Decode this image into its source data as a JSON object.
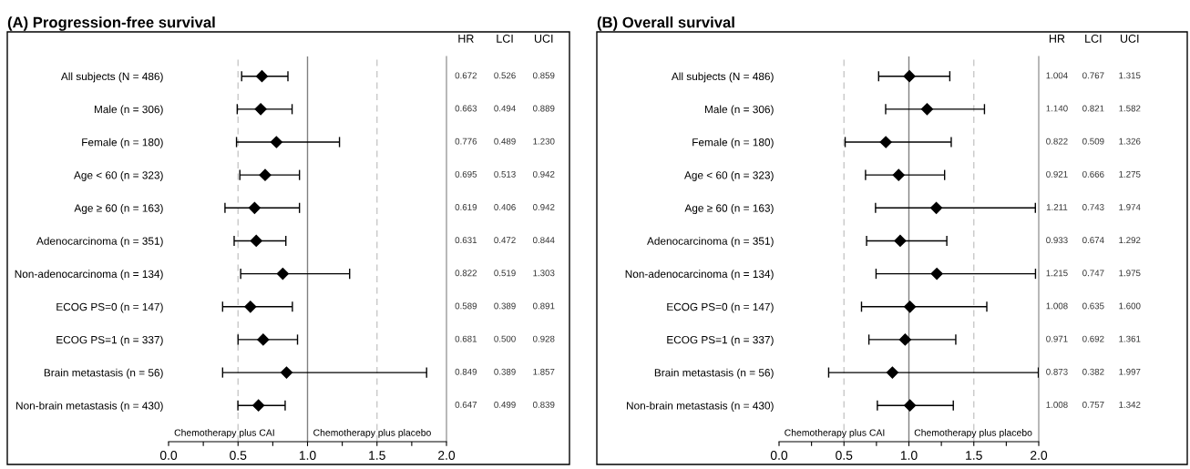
{
  "chart_data": [
    {
      "type": "scatter",
      "orientation": "horizontal",
      "title": "(A) Progression-free survival",
      "categories": [
        "All subjects (N = 486)",
        "Male (n = 306)",
        "Female (n = 180)",
        "Age < 60 (n = 323)",
        "Age ≥ 60 (n = 163)",
        "Adenocarcinoma (n = 351)",
        "Non-adenocarcinoma (n = 134)",
        "ECOG PS=0 (n = 147)",
        "ECOG PS=1 (n = 337)",
        "Brain metastasis (n = 56)",
        "Non-brain metastasis (n = 430)"
      ],
      "values": [
        0.672,
        0.663,
        0.776,
        0.695,
        0.619,
        0.631,
        0.822,
        0.589,
        0.681,
        0.849,
        0.647
      ],
      "value_labels": [
        "0.672",
        "0.663",
        "0.776",
        "0.695",
        "0.619",
        "0.631",
        "0.822",
        "0.589",
        "0.681",
        "0.849",
        "0.647"
      ],
      "errors": [
        [
          0.526,
          0.859
        ],
        [
          0.494,
          0.889
        ],
        [
          0.489,
          1.23
        ],
        [
          0.513,
          0.942
        ],
        [
          0.406,
          0.942
        ],
        [
          0.472,
          0.844
        ],
        [
          0.519,
          1.303
        ],
        [
          0.389,
          0.891
        ],
        [
          0.5,
          0.928
        ],
        [
          0.389,
          1.857
        ],
        [
          0.499,
          0.839
        ]
      ],
      "color": "#000000",
      "marker": "diamond",
      "grid": false,
      "xlim": [
        0,
        2
      ],
      "xticks": [
        {
          "value": 0,
          "label": "0.0"
        },
        {
          "value": 0.25,
          "label": null
        },
        {
          "value": 0.5,
          "label": "0.5"
        },
        {
          "value": 0.75,
          "label": null
        },
        {
          "value": 1,
          "label": "1.0"
        },
        {
          "value": 1.25,
          "label": null
        },
        {
          "value": 1.5,
          "label": "1.5"
        },
        {
          "value": 1.75,
          "label": null
        },
        {
          "value": 2,
          "label": "2.0"
        }
      ],
      "ref_lines": [
        {
          "axis": "x",
          "value": 0.5,
          "label": null,
          "color": "#c8c8c8",
          "line_style": "dashed"
        },
        {
          "axis": "x",
          "value": 1,
          "label": null,
          "color": "#808080",
          "line_style": "solid"
        },
        {
          "axis": "x",
          "value": 1.5,
          "label": null,
          "color": "#c8c8c8",
          "line_style": "dashed"
        }
      ],
      "annotations": [
        "HR",
        "LCI",
        "UCI",
        "Chemotherapy plus CAI",
        "Chemotherapy plus placebo",
        "0.526",
        "0.859",
        "0.494",
        "0.889",
        "0.489",
        "1.230",
        "0.513",
        "0.942",
        "0.406",
        "0.942",
        "0.472",
        "0.844",
        "0.519",
        "1.303",
        "0.389",
        "0.891",
        "0.500",
        "0.928",
        "0.389",
        "1.857",
        "0.499",
        "0.839"
      ]
    },
    {
      "type": "scatter",
      "orientation": "horizontal",
      "title": "(B) Overall survival",
      "categories": [
        "All subjects (N = 486)",
        "Male (n = 306)",
        "Female (n = 180)",
        "Age < 60 (n = 323)",
        "Age ≥ 60 (n = 163)",
        "Adenocarcinoma (n = 351)",
        "Non-adenocarcinoma (n = 134)",
        "ECOG PS=0 (n = 147)",
        "ECOG PS=1 (n = 337)",
        "Brain metastasis (n = 56)",
        "Non-brain metastasis (n = 430)"
      ],
      "values": [
        1.004,
        1.14,
        0.822,
        0.921,
        1.211,
        0.933,
        1.215,
        1.008,
        0.971,
        0.873,
        1.008
      ],
      "value_labels": [
        "1.004",
        "1.140",
        "0.822",
        "0.921",
        "1.211",
        "0.933",
        "1.215",
        "1.008",
        "0.971",
        "0.873",
        "1.008"
      ],
      "errors": [
        [
          0.767,
          1.315
        ],
        [
          0.821,
          1.582
        ],
        [
          0.509,
          1.326
        ],
        [
          0.666,
          1.275
        ],
        [
          0.743,
          1.974
        ],
        [
          0.674,
          1.292
        ],
        [
          0.747,
          1.975
        ],
        [
          0.635,
          1.6
        ],
        [
          0.692,
          1.361
        ],
        [
          0.382,
          1.997
        ],
        [
          0.757,
          1.342
        ]
      ],
      "color": "#000000",
      "marker": "diamond",
      "grid": false,
      "xlim": [
        0,
        2
      ],
      "xticks": [
        {
          "value": 0,
          "label": "0.0"
        },
        {
          "value": 0.25,
          "label": null
        },
        {
          "value": 0.5,
          "label": "0.5"
        },
        {
          "value": 0.75,
          "label": null
        },
        {
          "value": 1,
          "label": "1.0"
        },
        {
          "value": 1.25,
          "label": null
        },
        {
          "value": 1.5,
          "label": "1.5"
        },
        {
          "value": 1.75,
          "label": null
        },
        {
          "value": 2,
          "label": "2.0"
        }
      ],
      "ref_lines": [
        {
          "axis": "x",
          "value": 0.5,
          "label": null,
          "color": "#c8c8c8",
          "line_style": "dashed"
        },
        {
          "axis": "x",
          "value": 1,
          "label": null,
          "color": "#808080",
          "line_style": "solid"
        },
        {
          "axis": "x",
          "value": 1.5,
          "label": null,
          "color": "#c8c8c8",
          "line_style": "dashed"
        }
      ],
      "annotations": [
        "HR",
        "LCI",
        "UCI",
        "Chemotherapy plus CAI",
        "Chemotherapy plus placebo",
        "0.767",
        "1.315",
        "0.821",
        "1.582",
        "0.509",
        "1.326",
        "0.666",
        "1.275",
        "0.743",
        "1.974",
        "0.674",
        "1.292",
        "0.747",
        "1.975",
        "0.635",
        "1.600",
        "0.692",
        "1.361",
        "0.382",
        "1.997",
        "0.757",
        "1.342"
      ]
    }
  ]
}
